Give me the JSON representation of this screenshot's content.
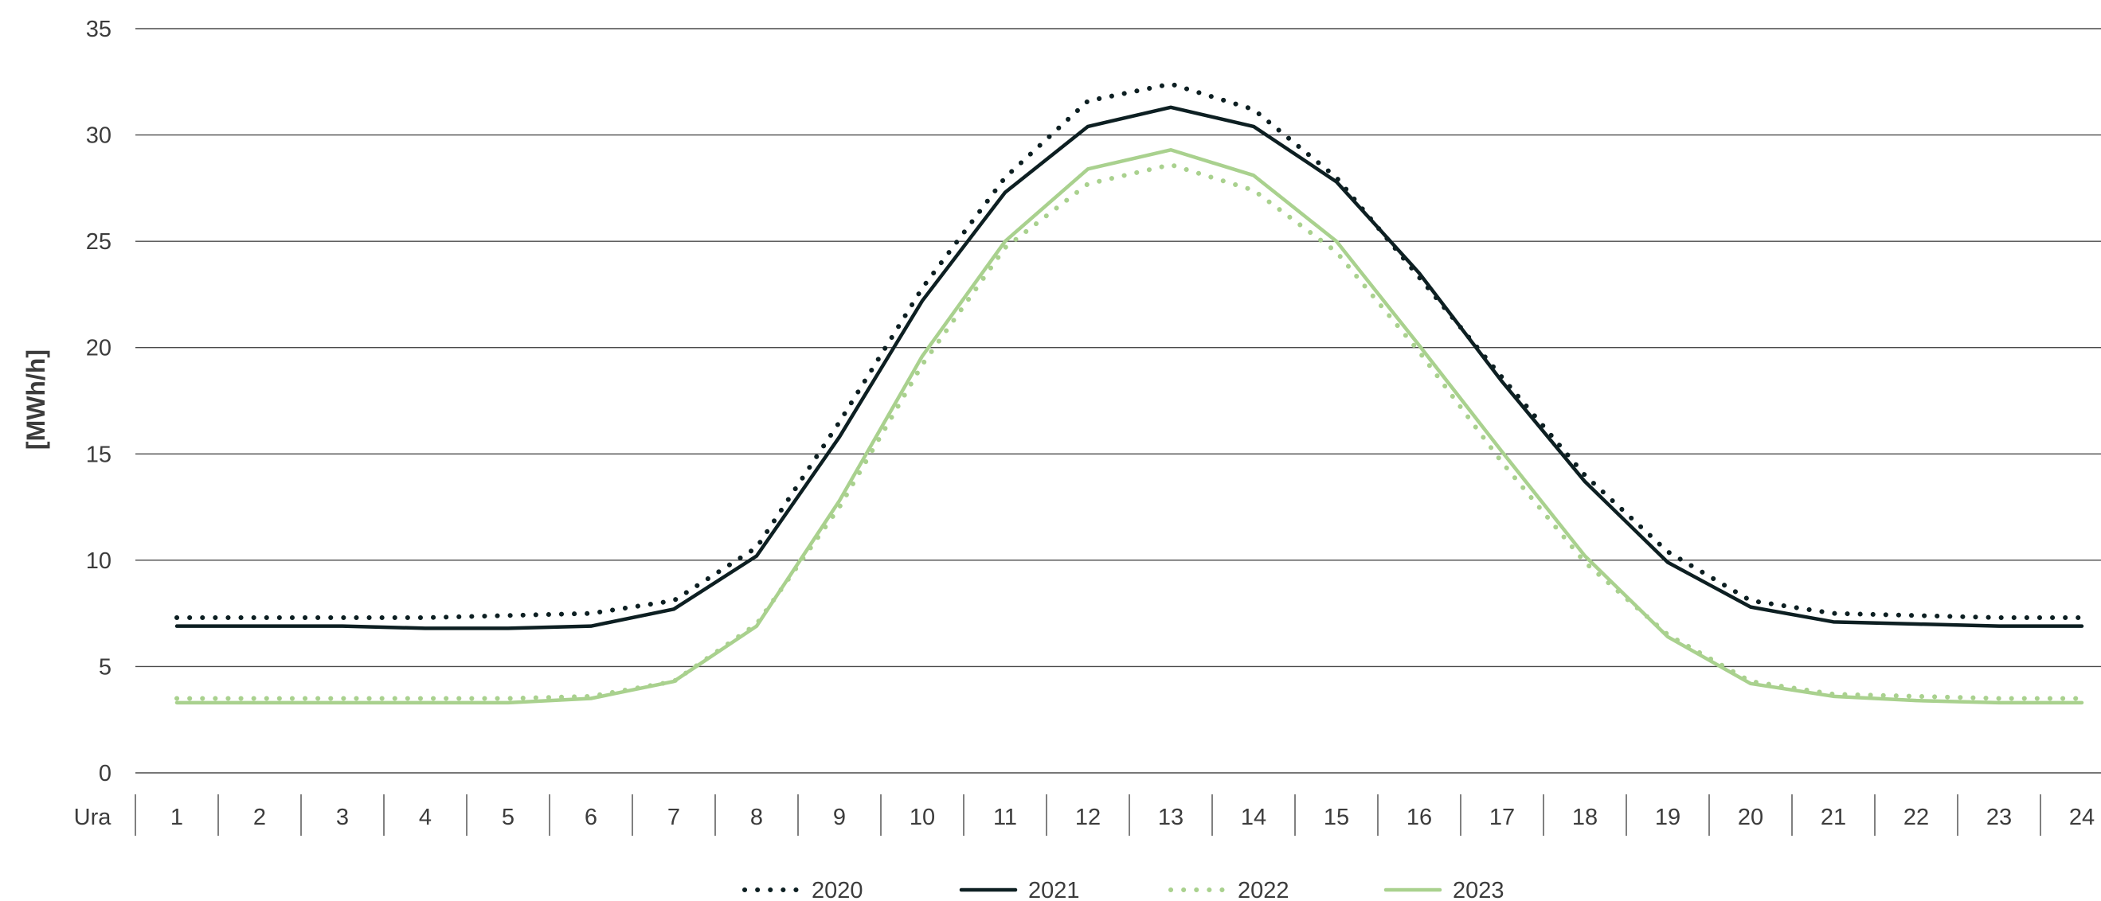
{
  "chart_data": {
    "type": "line",
    "title": "",
    "xlabel": "Ura",
    "ylabel": "[MWh/h]",
    "categories": [
      "1",
      "2",
      "3",
      "4",
      "5",
      "6",
      "7",
      "8",
      "9",
      "10",
      "11",
      "12",
      "13",
      "14",
      "15",
      "16",
      "17",
      "18",
      "19",
      "20",
      "21",
      "22",
      "23",
      "24"
    ],
    "ylim": [
      0,
      35
    ],
    "yticks": [
      0,
      5,
      10,
      15,
      20,
      25,
      30,
      35
    ],
    "grid": "horizontal",
    "legend_position": "bottom",
    "series": [
      {
        "name": "2020",
        "style": "dotted",
        "color": "#0d1f22",
        "values": [
          7.3,
          7.3,
          7.3,
          7.3,
          7.4,
          7.5,
          8.1,
          10.6,
          16.5,
          22.8,
          28.0,
          31.6,
          32.4,
          31.2,
          28.0,
          23.3,
          18.6,
          14.0,
          10.4,
          8.1,
          7.5,
          7.4,
          7.3,
          7.3
        ]
      },
      {
        "name": "2021",
        "style": "solid",
        "color": "#0d1f22",
        "values": [
          6.9,
          6.9,
          6.9,
          6.8,
          6.8,
          6.9,
          7.7,
          10.2,
          15.8,
          22.2,
          27.3,
          30.4,
          31.3,
          30.4,
          27.8,
          23.5,
          18.4,
          13.7,
          9.9,
          7.8,
          7.1,
          7.0,
          6.9,
          6.9
        ]
      },
      {
        "name": "2022",
        "style": "dotted",
        "color": "#a9d18e",
        "values": [
          3.5,
          3.5,
          3.5,
          3.5,
          3.5,
          3.6,
          4.3,
          7.0,
          12.5,
          19.2,
          24.7,
          27.7,
          28.6,
          27.4,
          24.5,
          19.8,
          14.6,
          9.9,
          6.5,
          4.3,
          3.7,
          3.6,
          3.5,
          3.5
        ]
      },
      {
        "name": "2023",
        "style": "solid",
        "color": "#a9d18e",
        "values": [
          3.3,
          3.3,
          3.3,
          3.3,
          3.3,
          3.5,
          4.3,
          6.9,
          12.8,
          19.6,
          25.0,
          28.4,
          29.3,
          28.1,
          25.0,
          20.1,
          15.1,
          10.2,
          6.4,
          4.2,
          3.6,
          3.4,
          3.3,
          3.3
        ]
      }
    ]
  }
}
